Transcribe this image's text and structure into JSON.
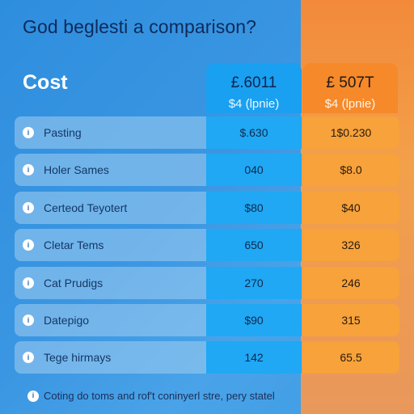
{
  "header": {
    "title": "God beglesti a comparison?",
    "cost_label": "Cost"
  },
  "columns": [
    {
      "price": "£.6011",
      "sub": "$4 (lpnie)",
      "color": "#1aa0f0"
    },
    {
      "price": "£ 507T",
      "sub": "$4 (lpnie)",
      "color": "#f6892a"
    }
  ],
  "rows": [
    {
      "icon": "info-icon",
      "label": "Pasting",
      "a": "$.630",
      "b": "1$0.230"
    },
    {
      "icon": "info-icon",
      "label": "Holer Sames",
      "a": "040",
      "b": "$8.0"
    },
    {
      "icon": "info-icon",
      "label": "Certeod Teyotert",
      "a": "$80",
      "b": "$40"
    },
    {
      "icon": "info-icon",
      "label": "Cletar Tems",
      "a": "650",
      "b": "326"
    },
    {
      "icon": "info-icon",
      "label": "Cat Prudigs",
      "a": "270",
      "b": "246"
    },
    {
      "icon": "info-icon",
      "label": "Datepigo",
      "a": "$90",
      "b": "315"
    },
    {
      "icon": "info-icon",
      "label": "Tege hirmays",
      "a": "142",
      "b": "65.5"
    }
  ],
  "footer": {
    "icon": "info-icon",
    "text": "Coting do toms and rof't coninyerl stre, pery statel"
  }
}
